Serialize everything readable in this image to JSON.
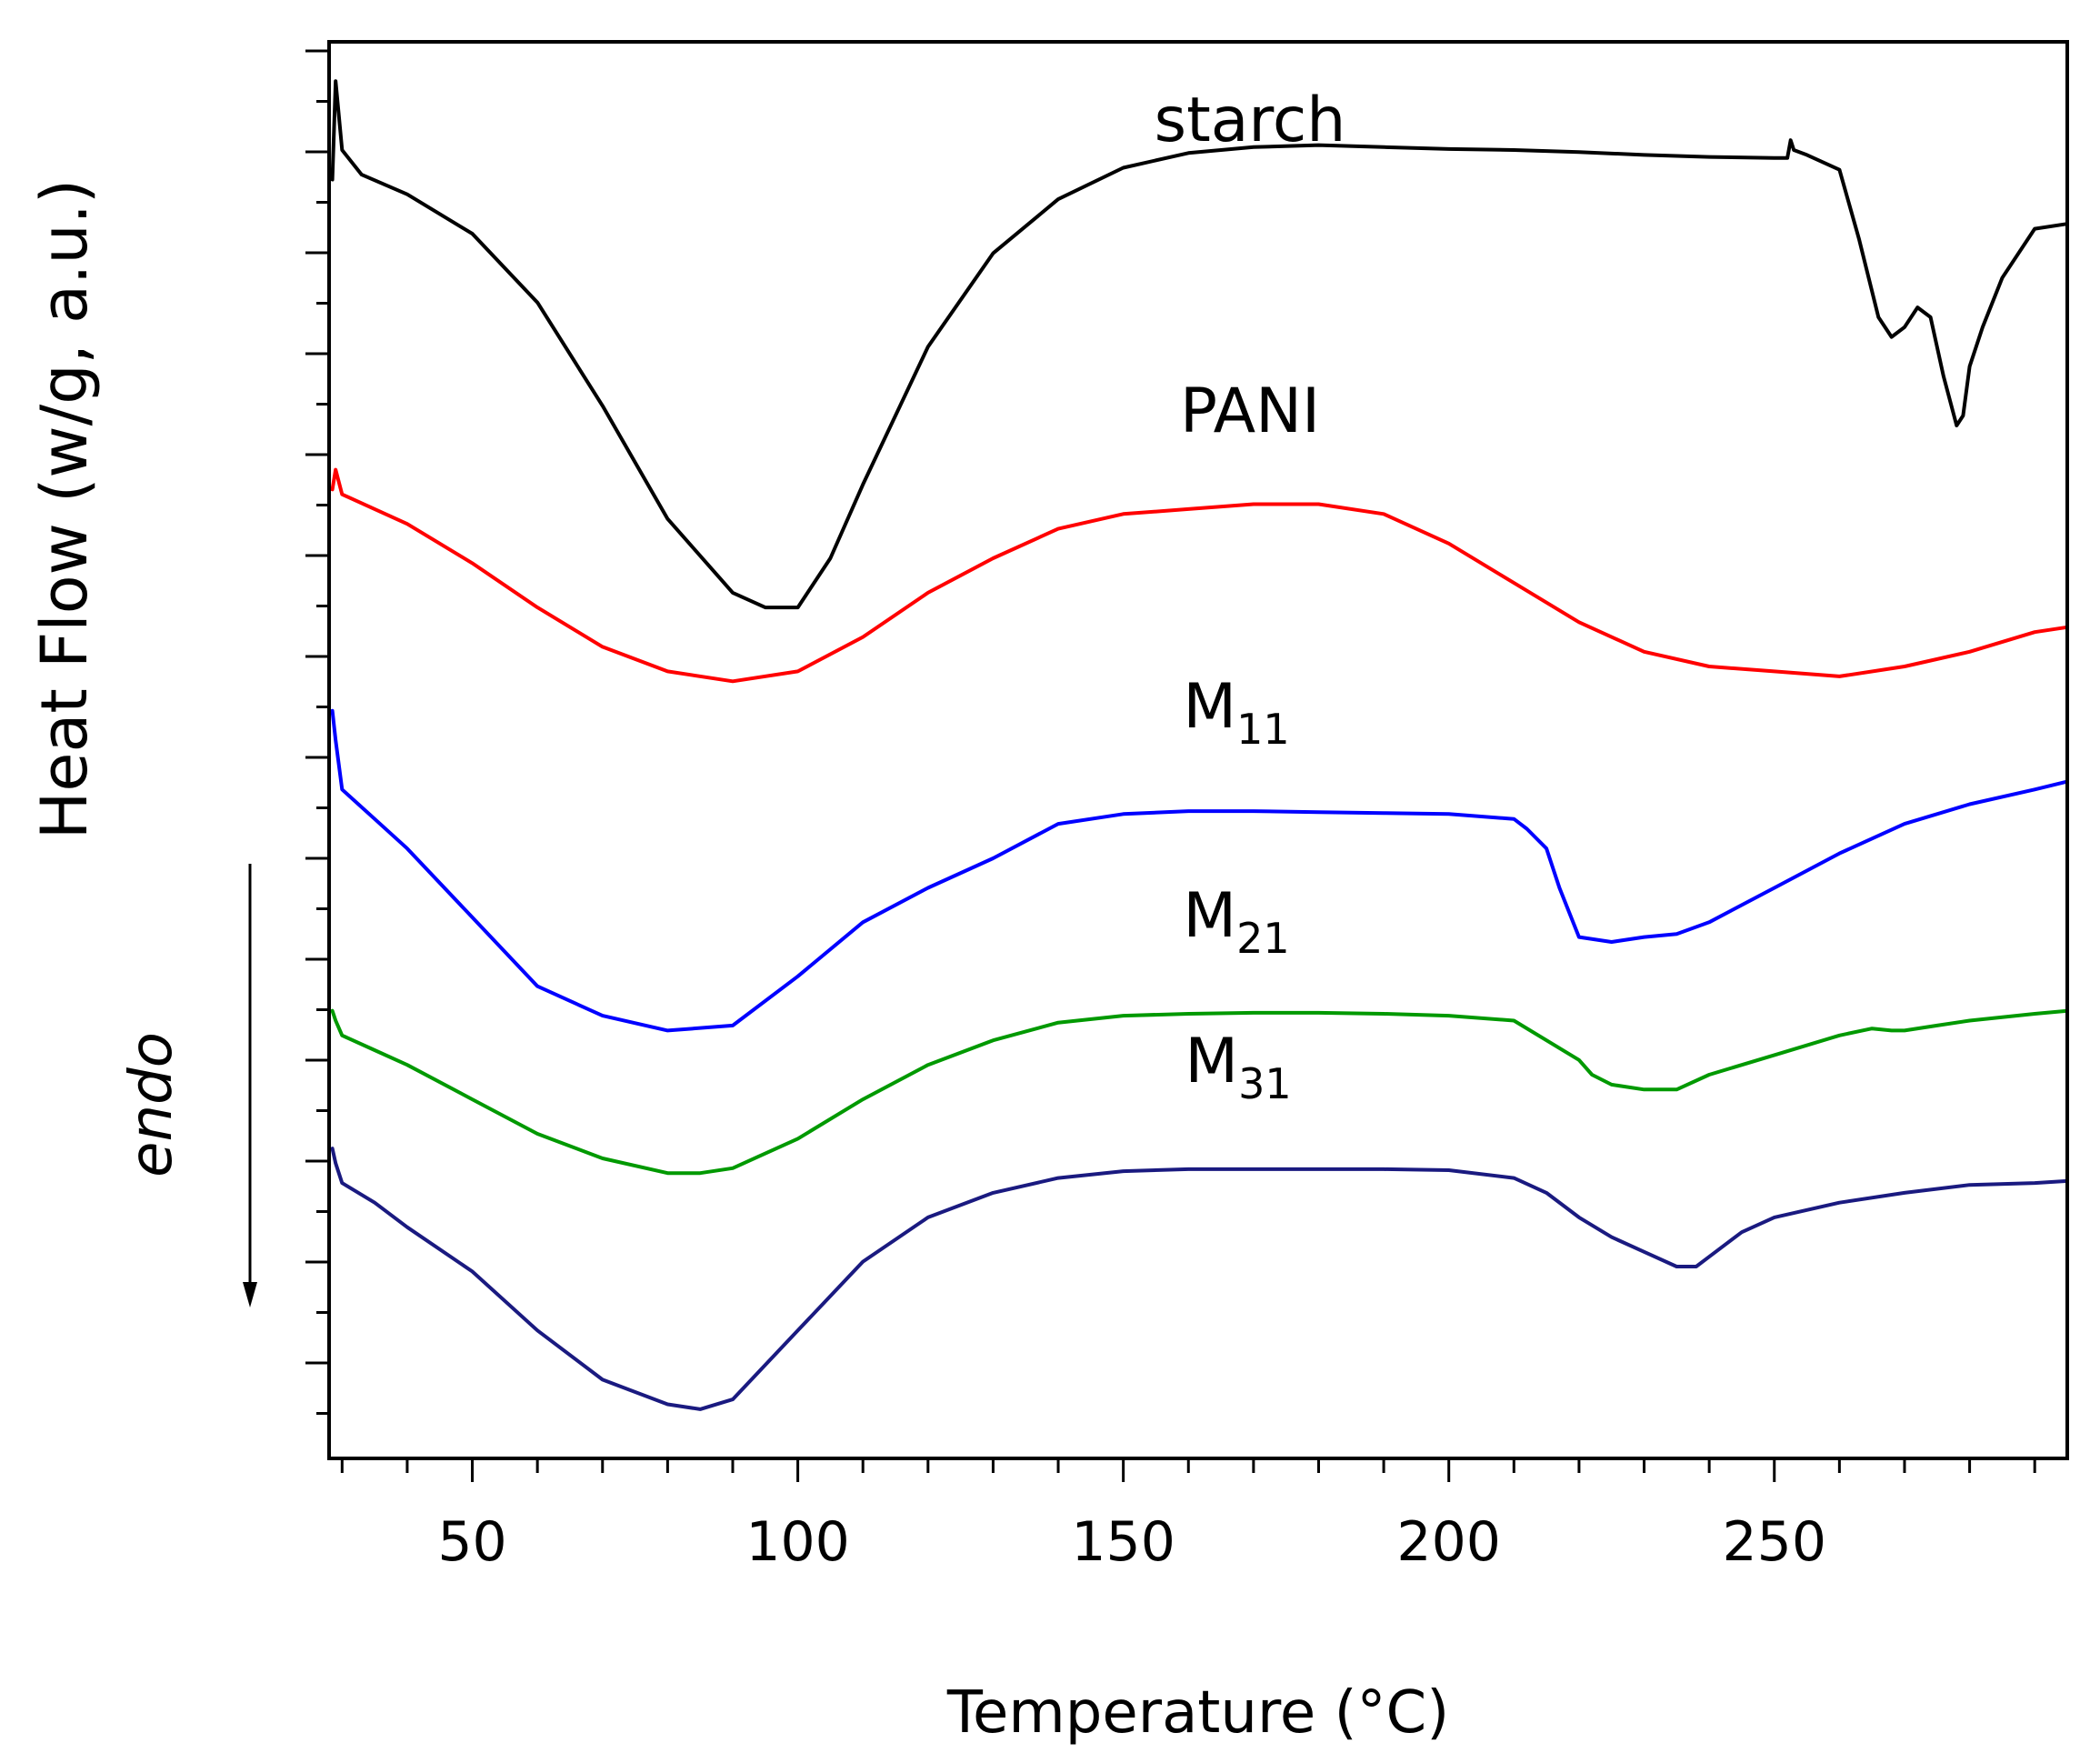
{
  "chart_data": {
    "type": "line",
    "title": "",
    "xlabel": "Temperature (°C)",
    "ylabel": "Heat Flow (w/g, a.u.)",
    "xlim": [
      28,
      295
    ],
    "ylim": [
      -14.4,
      0
    ],
    "x_ticks": [
      "50",
      "100",
      "150",
      "200",
      "250"
    ],
    "x_tick_values": [
      50,
      100,
      150,
      200,
      250
    ],
    "y_tick_labels_shown": false,
    "grid": false,
    "annotation": {
      "text": "endo",
      "arrow": "down"
    },
    "series": [
      {
        "name": "starch",
        "label_main": "starch",
        "label_sub": "",
        "color": "#000000",
        "x": [
          28.5,
          29,
          30,
          33,
          40,
          50,
          60,
          70,
          80,
          90,
          95,
          100,
          105,
          110,
          120,
          130,
          140,
          150,
          160,
          170,
          180,
          190,
          200,
          210,
          220,
          230,
          240,
          250,
          252,
          252.5,
          253,
          255,
          260,
          263,
          266,
          268,
          270,
          272,
          274,
          276,
          278,
          279,
          280,
          282,
          285,
          290,
          295
        ],
        "y": [
          -1.4,
          -0.4,
          -1.1,
          -1.35,
          -1.55,
          -1.95,
          -2.65,
          -3.7,
          -4.85,
          -5.6,
          -5.75,
          -5.75,
          -5.25,
          -4.5,
          -3.1,
          -2.15,
          -1.6,
          -1.28,
          -1.13,
          -1.07,
          -1.05,
          -1.07,
          -1.09,
          -1.1,
          -1.12,
          -1.15,
          -1.17,
          -1.18,
          -1.18,
          -1.0,
          -1.1,
          -1.15,
          -1.3,
          -2.0,
          -2.8,
          -3.0,
          -2.9,
          -2.7,
          -2.8,
          -3.4,
          -3.9,
          -3.8,
          -3.3,
          -2.9,
          -2.4,
          -1.9,
          -1.85
        ]
      },
      {
        "name": "PANI",
        "label_main": "PANI",
        "label_sub": "",
        "color": "#ff0000",
        "x": [
          28.5,
          29,
          30,
          35,
          40,
          50,
          60,
          70,
          80,
          90,
          100,
          110,
          120,
          130,
          140,
          150,
          160,
          170,
          180,
          190,
          200,
          210,
          220,
          230,
          240,
          250,
          260,
          270,
          280,
          290,
          295
        ],
        "y": [
          -4.55,
          -4.35,
          -4.6,
          -4.75,
          -4.9,
          -5.3,
          -5.75,
          -6.15,
          -6.4,
          -6.5,
          -6.4,
          -6.05,
          -5.6,
          -5.25,
          -4.95,
          -4.8,
          -4.75,
          -4.7,
          -4.7,
          -4.8,
          -5.1,
          -5.5,
          -5.9,
          -6.2,
          -6.35,
          -6.4,
          -6.45,
          -6.35,
          -6.2,
          -6.0,
          -5.95
        ]
      },
      {
        "name": "M11",
        "label_main": "M",
        "label_sub": "11",
        "color": "#0000ff",
        "x": [
          28.5,
          29,
          30,
          35,
          40,
          50,
          60,
          70,
          80,
          90,
          100,
          110,
          120,
          130,
          140,
          150,
          160,
          170,
          180,
          190,
          200,
          210,
          212,
          215,
          217,
          220,
          225,
          230,
          235,
          240,
          250,
          260,
          270,
          280,
          290,
          295
        ],
        "y": [
          -6.8,
          -7.1,
          -7.6,
          -7.9,
          -8.2,
          -8.9,
          -9.6,
          -9.9,
          -10.05,
          -10.0,
          -9.5,
          -8.95,
          -8.6,
          -8.3,
          -7.95,
          -7.85,
          -7.82,
          -7.82,
          -7.83,
          -7.84,
          -7.85,
          -7.9,
          -8.0,
          -8.2,
          -8.6,
          -9.1,
          -9.15,
          -9.1,
          -9.07,
          -8.95,
          -8.6,
          -8.25,
          -7.95,
          -7.75,
          -7.6,
          -7.52
        ]
      },
      {
        "name": "M21",
        "label_main": "M",
        "label_sub": "21",
        "color": "#009900",
        "x": [
          28.5,
          29,
          30,
          35,
          40,
          50,
          60,
          70,
          80,
          85,
          90,
          100,
          110,
          120,
          130,
          140,
          150,
          160,
          170,
          180,
          190,
          200,
          210,
          220,
          222,
          225,
          230,
          235,
          240,
          250,
          260,
          265,
          268,
          270,
          275,
          280,
          290,
          295
        ],
        "y": [
          -9.85,
          -9.95,
          -10.1,
          -10.25,
          -10.4,
          -10.75,
          -11.1,
          -11.35,
          -11.5,
          -11.5,
          -11.45,
          -11.15,
          -10.75,
          -10.4,
          -10.15,
          -9.97,
          -9.9,
          -9.88,
          -9.87,
          -9.87,
          -9.88,
          -9.9,
          -9.95,
          -10.35,
          -10.5,
          -10.6,
          -10.65,
          -10.65,
          -10.5,
          -10.3,
          -10.1,
          -10.03,
          -10.05,
          -10.05,
          -10.0,
          -9.95,
          -9.88,
          -9.85
        ]
      },
      {
        "name": "M31",
        "label_main": "M",
        "label_sub": "31",
        "color": "#1a1a80",
        "x": [
          28.5,
          29,
          30,
          35,
          40,
          50,
          60,
          70,
          80,
          85,
          90,
          100,
          110,
          120,
          130,
          140,
          150,
          160,
          170,
          180,
          190,
          200,
          210,
          215,
          220,
          225,
          230,
          235,
          238,
          240,
          245,
          250,
          260,
          270,
          280,
          290,
          295
        ],
        "y": [
          -11.25,
          -11.4,
          -11.6,
          -11.8,
          -12.05,
          -12.5,
          -13.1,
          -13.6,
          -13.85,
          -13.9,
          -13.8,
          -13.1,
          -12.4,
          -11.95,
          -11.7,
          -11.55,
          -11.48,
          -11.46,
          -11.46,
          -11.46,
          -11.46,
          -11.47,
          -11.55,
          -11.7,
          -11.95,
          -12.15,
          -12.3,
          -12.45,
          -12.45,
          -12.35,
          -12.1,
          -11.95,
          -11.8,
          -11.7,
          -11.62,
          -11.6,
          -11.58
        ]
      }
    ]
  }
}
